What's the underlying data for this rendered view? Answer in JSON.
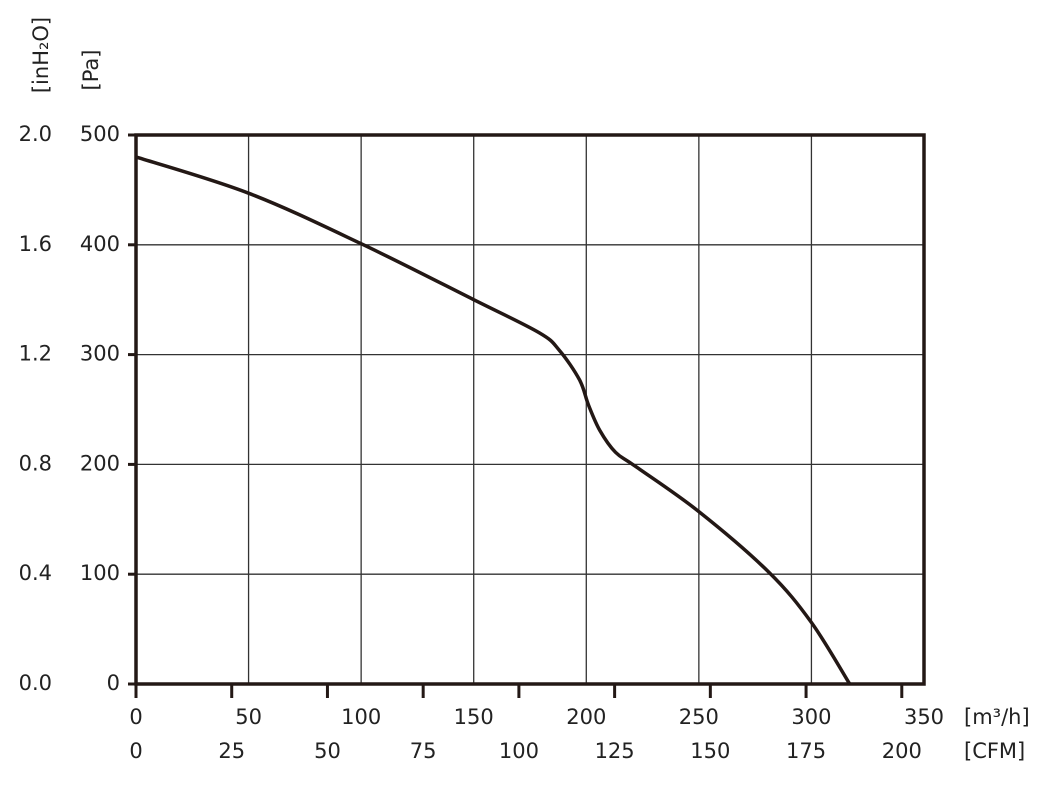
{
  "chart_data": {
    "type": "line",
    "y_label": "[Pa]",
    "y2_label": "[inH₂O]",
    "x_label": "[m³/h]",
    "x2_label": "[CFM]",
    "x": [
      0,
      50,
      100,
      150,
      179,
      188,
      197,
      201,
      206,
      213,
      222,
      250,
      281,
      300,
      317
    ],
    "values": [
      480,
      447,
      401,
      350,
      320,
      304,
      277,
      254,
      231,
      211,
      198,
      157,
      102,
      56,
      0
    ],
    "color": "#231815",
    "xlim": [
      0,
      350
    ],
    "xticks": [
      0,
      50,
      100,
      150,
      200,
      250,
      300,
      350
    ],
    "x2lim": [
      0,
      205.8
    ],
    "x2ticks": [
      0,
      25,
      50,
      75,
      100,
      125,
      150,
      175,
      200
    ],
    "ylim": [
      0,
      500
    ],
    "yticks": [
      0,
      100,
      200,
      300,
      400,
      500
    ],
    "y2lim": [
      0,
      2.0
    ],
    "y2ticks": [
      {
        "value": 0,
        "label": "0.0"
      },
      0.4,
      0.8,
      1.2,
      1.6,
      {
        "value": 2.0,
        "label": "2.0"
      }
    ],
    "grid": true
  }
}
